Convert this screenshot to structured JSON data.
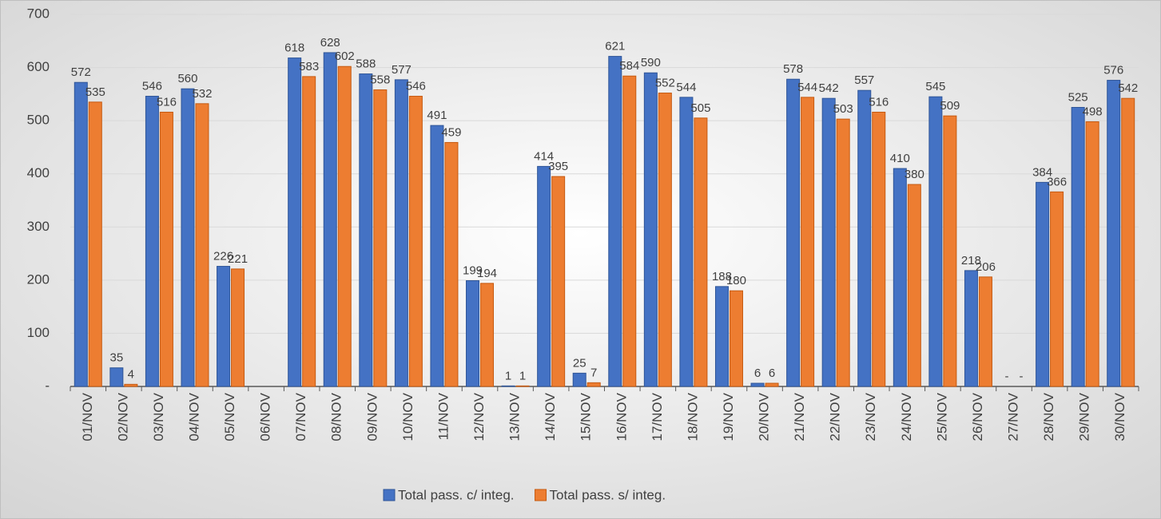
{
  "chart_data": {
    "type": "bar",
    "categories": [
      "01/NOV",
      "02/NOV",
      "03/NOV",
      "04/NOV",
      "05/NOV",
      "06/NOV",
      "07/NOV",
      "08/NOV",
      "09/NOV",
      "10/NOV",
      "11/NOV",
      "12/NOV",
      "13/NOV",
      "14/NOV",
      "15/NOV",
      "16/NOV",
      "17/NOV",
      "18/NOV",
      "19/NOV",
      "20/NOV",
      "21/NOV",
      "22/NOV",
      "23/NOV",
      "24/NOV",
      "25/NOV",
      "26/NOV",
      "27/NOV",
      "28/NOV",
      "29/NOV",
      "30/NOV"
    ],
    "series": [
      {
        "name": "Total pass. c/ integ.",
        "color": "#4472c4",
        "values": [
          572,
          35,
          546,
          560,
          226,
          null,
          618,
          628,
          588,
          577,
          491,
          199,
          1,
          414,
          25,
          621,
          590,
          544,
          188,
          6,
          578,
          542,
          557,
          410,
          545,
          218,
          0,
          384,
          525,
          576
        ],
        "value_labels": [
          null,
          null,
          null,
          null,
          null,
          null,
          null,
          null,
          null,
          null,
          null,
          null,
          null,
          null,
          null,
          null,
          null,
          null,
          null,
          null,
          null,
          null,
          null,
          null,
          null,
          null,
          "-",
          null,
          null,
          null
        ]
      },
      {
        "name": "Total pass. s/ integ.",
        "color": "#ed7d31",
        "values": [
          535,
          4,
          516,
          532,
          221,
          null,
          583,
          602,
          558,
          546,
          459,
          194,
          1,
          395,
          7,
          584,
          552,
          505,
          180,
          6,
          544,
          503,
          516,
          380,
          509,
          206,
          0,
          366,
          498,
          542
        ],
        "value_labels": [
          null,
          null,
          null,
          null,
          null,
          null,
          null,
          null,
          null,
          null,
          null,
          null,
          null,
          null,
          null,
          null,
          null,
          null,
          null,
          null,
          null,
          null,
          null,
          null,
          null,
          null,
          "-",
          null,
          null,
          null
        ]
      }
    ],
    "ylim": [
      0,
      700
    ],
    "yticks": [
      {
        "value": 0,
        "label": "-"
      },
      100,
      200,
      300,
      400,
      500,
      600,
      700
    ],
    "grid": true,
    "legend": "bottom"
  }
}
